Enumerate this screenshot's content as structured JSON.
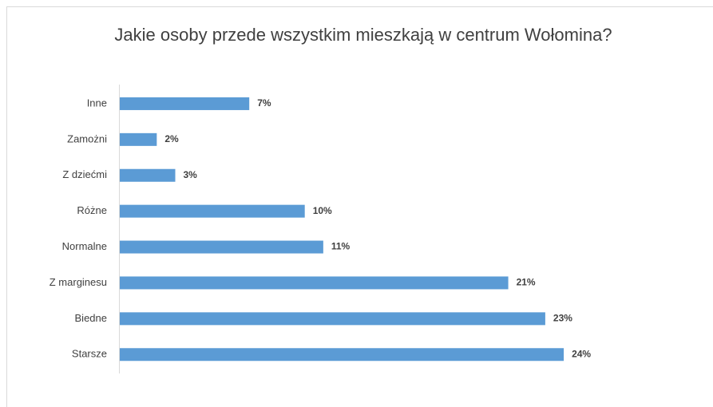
{
  "chart_data": {
    "type": "hbar",
    "title": "Jakie osoby przede wszystkim mieszkają w centrum Wołomina?",
    "categories": [
      "Inne",
      "Zamożni",
      "Z dziećmi",
      "Różne",
      "Normalne",
      "Z marginesu",
      "Biedne",
      "Starsze"
    ],
    "values": [
      7,
      2,
      3,
      10,
      11,
      21,
      23,
      24
    ],
    "value_labels": [
      "7%",
      "2%",
      "3%",
      "10%",
      "11%",
      "21%",
      "23%",
      "24%"
    ],
    "color": "#5b9bd5"
  }
}
